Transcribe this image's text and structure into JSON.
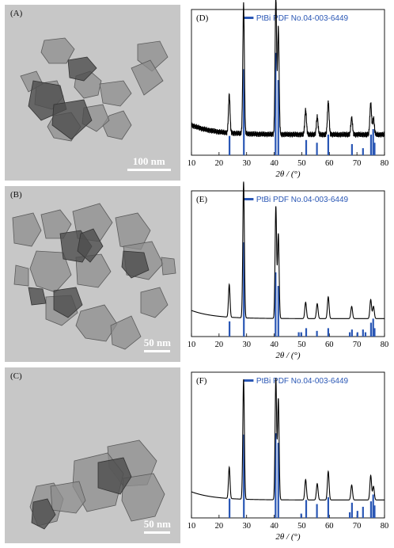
{
  "panels": [
    {
      "id": "A",
      "label": "(A)",
      "scale_text": "100 nm",
      "scale_bar_fraction": 0.25,
      "particles": [
        [
          [
            50,
            45
          ],
          [
            76,
            42
          ],
          [
            88,
            56
          ],
          [
            78,
            74
          ],
          [
            56,
            74
          ],
          [
            46,
            60
          ]
        ],
        [
          [
            90,
            90
          ],
          [
            108,
            84
          ],
          [
            122,
            96
          ],
          [
            118,
            114
          ],
          [
            100,
            118
          ],
          [
            88,
            104
          ]
        ],
        [
          [
            120,
            100
          ],
          [
            150,
            96
          ],
          [
            160,
            112
          ],
          [
            146,
            128
          ],
          [
            124,
            124
          ]
        ],
        [
          [
            40,
            100
          ],
          [
            66,
            96
          ],
          [
            74,
            116
          ],
          [
            60,
            132
          ],
          [
            38,
            126
          ]
        ],
        [
          [
            62,
            140
          ],
          [
            84,
            136
          ],
          [
            96,
            154
          ],
          [
            84,
            172
          ],
          [
            62,
            168
          ],
          [
            54,
            154
          ]
        ],
        [
          [
            132,
            140
          ],
          [
            150,
            134
          ],
          [
            160,
            152
          ],
          [
            148,
            170
          ],
          [
            130,
            166
          ],
          [
            124,
            152
          ]
        ],
        [
          [
            168,
            50
          ],
          [
            196,
            46
          ],
          [
            206,
            66
          ],
          [
            186,
            84
          ],
          [
            168,
            70
          ]
        ],
        [
          [
            160,
            80
          ],
          [
            184,
            70
          ],
          [
            200,
            96
          ],
          [
            176,
            114
          ]
        ],
        [
          [
            100,
            130
          ],
          [
            124,
            126
          ],
          [
            132,
            146
          ],
          [
            116,
            160
          ],
          [
            98,
            150
          ]
        ],
        [
          [
            20,
            90
          ],
          [
            40,
            84
          ],
          [
            48,
            100
          ],
          [
            30,
            110
          ]
        ]
      ],
      "dark_particles": [
        [
          [
            36,
            96
          ],
          [
            70,
            102
          ],
          [
            78,
            132
          ],
          [
            46,
            146
          ],
          [
            30,
            128
          ]
        ],
        [
          [
            62,
            126
          ],
          [
            100,
            120
          ],
          [
            110,
            146
          ],
          [
            84,
            170
          ],
          [
            60,
            152
          ]
        ],
        [
          [
            80,
            70
          ],
          [
            104,
            66
          ],
          [
            116,
            80
          ],
          [
            100,
            96
          ],
          [
            82,
            92
          ]
        ]
      ]
    },
    {
      "id": "B",
      "label": "(B)",
      "scale_text": "50 nm",
      "scale_bar_fraction": 0.15,
      "particles": [
        [
          [
            10,
            40
          ],
          [
            36,
            34
          ],
          [
            46,
            56
          ],
          [
            34,
            76
          ],
          [
            12,
            72
          ]
        ],
        [
          [
            46,
            36
          ],
          [
            70,
            30
          ],
          [
            84,
            48
          ],
          [
            74,
            66
          ],
          [
            52,
            66
          ]
        ],
        [
          [
            86,
            32
          ],
          [
            120,
            22
          ],
          [
            136,
            46
          ],
          [
            120,
            70
          ],
          [
            92,
            66
          ]
        ],
        [
          [
            140,
            40
          ],
          [
            168,
            34
          ],
          [
            184,
            56
          ],
          [
            172,
            80
          ],
          [
            146,
            76
          ]
        ],
        [
          [
            150,
            76
          ],
          [
            186,
            70
          ],
          [
            200,
            98
          ],
          [
            182,
            118
          ],
          [
            154,
            112
          ]
        ],
        [
          [
            40,
            82
          ],
          [
            74,
            84
          ],
          [
            84,
            112
          ],
          [
            64,
            134
          ],
          [
            40,
            126
          ],
          [
            32,
            104
          ]
        ],
        [
          [
            90,
            90
          ],
          [
            122,
            86
          ],
          [
            134,
            108
          ],
          [
            118,
            128
          ],
          [
            92,
            124
          ]
        ],
        [
          [
            14,
            100
          ],
          [
            30,
            104
          ],
          [
            30,
            126
          ],
          [
            12,
            124
          ]
        ],
        [
          [
            52,
            140
          ],
          [
            84,
            138
          ],
          [
            92,
            160
          ],
          [
            72,
            176
          ],
          [
            52,
            168
          ]
        ],
        [
          [
            96,
            158
          ],
          [
            126,
            150
          ],
          [
            142,
            174
          ],
          [
            128,
            196
          ],
          [
            102,
            192
          ],
          [
            90,
            176
          ]
        ],
        [
          [
            134,
            176
          ],
          [
            160,
            164
          ],
          [
            172,
            190
          ],
          [
            152,
            206
          ],
          [
            136,
            200
          ]
        ],
        [
          [
            172,
            134
          ],
          [
            196,
            128
          ],
          [
            206,
            150
          ],
          [
            190,
            166
          ],
          [
            172,
            160
          ]
        ],
        [
          [
            198,
            90
          ],
          [
            214,
            92
          ],
          [
            216,
            110
          ],
          [
            200,
            112
          ]
        ]
      ],
      "dark_particles": [
        [
          [
            70,
            60
          ],
          [
            96,
            56
          ],
          [
            110,
            76
          ],
          [
            98,
            96
          ],
          [
            74,
            92
          ]
        ],
        [
          [
            96,
            60
          ],
          [
            112,
            54
          ],
          [
            124,
            76
          ],
          [
            108,
            96
          ],
          [
            92,
            82
          ]
        ],
        [
          [
            62,
            132
          ],
          [
            90,
            128
          ],
          [
            98,
            150
          ],
          [
            80,
            166
          ],
          [
            62,
            156
          ]
        ],
        [
          [
            150,
            82
          ],
          [
            176,
            84
          ],
          [
            182,
            106
          ],
          [
            160,
            116
          ],
          [
            148,
            102
          ]
        ],
        [
          [
            30,
            128
          ],
          [
            48,
            130
          ],
          [
            52,
            148
          ],
          [
            34,
            150
          ]
        ]
      ]
    },
    {
      "id": "C",
      "label": "(C)",
      "scale_text": "50 nm",
      "scale_bar_fraction": 0.15,
      "particles": [
        [
          [
            130,
            100
          ],
          [
            170,
            92
          ],
          [
            192,
            118
          ],
          [
            180,
            148
          ],
          [
            150,
            150
          ],
          [
            132,
            126
          ]
        ],
        [
          [
            88,
            118
          ],
          [
            130,
            108
          ],
          [
            150,
            134
          ],
          [
            140,
            174
          ],
          [
            104,
            182
          ],
          [
            86,
            150
          ]
        ],
        [
          [
            150,
            140
          ],
          [
            188,
            134
          ],
          [
            202,
            160
          ],
          [
            190,
            188
          ],
          [
            160,
            194
          ],
          [
            148,
            168
          ]
        ],
        [
          [
            40,
            150
          ],
          [
            62,
            146
          ],
          [
            74,
            166
          ],
          [
            66,
            194
          ],
          [
            42,
            200
          ],
          [
            32,
            176
          ]
        ],
        [
          [
            58,
            150
          ],
          [
            94,
            144
          ],
          [
            102,
            168
          ],
          [
            90,
            184
          ],
          [
            60,
            180
          ]
        ]
      ],
      "dark_particles": [
        [
          [
            36,
            170
          ],
          [
            54,
            166
          ],
          [
            64,
            186
          ],
          [
            50,
            204
          ],
          [
            34,
            196
          ]
        ],
        [
          [
            118,
            120
          ],
          [
            150,
            114
          ],
          [
            160,
            138
          ],
          [
            146,
            160
          ],
          [
            118,
            152
          ]
        ]
      ]
    }
  ],
  "chart_data": [
    {
      "type": "line",
      "panel_label": "(D)",
      "legend": "PtBi PDF No.04-003-6449",
      "xlabel": "2θ / (°)",
      "xlim": [
        10,
        80
      ],
      "ylim": [
        0,
        100
      ],
      "x_ticks": [
        10,
        20,
        30,
        40,
        50,
        60,
        70,
        80
      ],
      "baseline": 14,
      "noise": 2.2,
      "peaks": [
        {
          "x": 23.7,
          "h": 28,
          "w": 0.28
        },
        {
          "x": 28.9,
          "h": 95,
          "w": 0.28
        },
        {
          "x": 40.6,
          "h": 100,
          "w": 0.28
        },
        {
          "x": 41.5,
          "h": 78,
          "w": 0.28
        },
        {
          "x": 51.4,
          "h": 18,
          "w": 0.3
        },
        {
          "x": 55.6,
          "h": 13,
          "w": 0.3
        },
        {
          "x": 59.6,
          "h": 24,
          "w": 0.3
        },
        {
          "x": 68.1,
          "h": 12,
          "w": 0.3
        },
        {
          "x": 75.0,
          "h": 23,
          "w": 0.3
        },
        {
          "x": 76.0,
          "h": 12,
          "w": 0.3
        }
      ],
      "reference": {
        "x": [
          23.8,
          29.0,
          40.5,
          41.5,
          51.6,
          55.5,
          59.6,
          68.2,
          72.2,
          75.1,
          75.9,
          76.4
        ],
        "h": [
          13,
          62,
          74,
          54,
          10,
          8,
          14,
          7,
          4,
          14,
          18,
          8
        ]
      }
    },
    {
      "type": "line",
      "panel_label": "(E)",
      "legend": "PtBi PDF No.04-003-6449",
      "xlabel": "2θ / (°)",
      "xlim": [
        10,
        80
      ],
      "ylim": [
        0,
        100
      ],
      "x_ticks": [
        10,
        20,
        30,
        40,
        50,
        60,
        70,
        80
      ],
      "baseline": 12,
      "noise": 0,
      "peaks": [
        {
          "x": 23.7,
          "h": 24,
          "w": 0.28
        },
        {
          "x": 28.9,
          "h": 100,
          "w": 0.28
        },
        {
          "x": 40.6,
          "h": 82,
          "w": 0.28
        },
        {
          "x": 41.5,
          "h": 62,
          "w": 0.28
        },
        {
          "x": 51.4,
          "h": 12,
          "w": 0.3
        },
        {
          "x": 55.6,
          "h": 11,
          "w": 0.3
        },
        {
          "x": 59.6,
          "h": 16,
          "w": 0.3
        },
        {
          "x": 68.1,
          "h": 9,
          "w": 0.3
        },
        {
          "x": 75.0,
          "h": 14,
          "w": 0.3
        },
        {
          "x": 76.0,
          "h": 9,
          "w": 0.3
        }
      ],
      "reference": {
        "x": [
          23.8,
          29.0,
          40.5,
          41.5,
          48.9,
          49.8,
          51.6,
          55.5,
          59.6,
          67.4,
          68.2,
          70.2,
          72.2,
          73.1,
          75.1,
          75.9,
          76.4
        ],
        "h": [
          10,
          68,
          46,
          36,
          2,
          2,
          5,
          3,
          5,
          2,
          4,
          2,
          4,
          2,
          9,
          12,
          5
        ]
      }
    },
    {
      "type": "line",
      "panel_label": "(F)",
      "legend": "PtBi PDF No.04-003-6449",
      "xlabel": "2θ / (°)",
      "xlim": [
        10,
        80
      ],
      "ylim": [
        0,
        100
      ],
      "x_ticks": [
        10,
        20,
        30,
        40,
        50,
        60,
        70,
        80
      ],
      "baseline": 12,
      "noise": 0,
      "peaks": [
        {
          "x": 23.7,
          "h": 23,
          "w": 0.28
        },
        {
          "x": 28.9,
          "h": 88,
          "w": 0.28
        },
        {
          "x": 40.6,
          "h": 89,
          "w": 0.28
        },
        {
          "x": 41.5,
          "h": 74,
          "w": 0.28
        },
        {
          "x": 51.4,
          "h": 15,
          "w": 0.3
        },
        {
          "x": 55.6,
          "h": 12,
          "w": 0.3
        },
        {
          "x": 59.6,
          "h": 21,
          "w": 0.3
        },
        {
          "x": 68.1,
          "h": 11,
          "w": 0.3
        },
        {
          "x": 75.0,
          "h": 18,
          "w": 0.3
        },
        {
          "x": 76.0,
          "h": 10,
          "w": 0.3
        }
      ],
      "reference": {
        "x": [
          23.8,
          29.0,
          40.5,
          41.5,
          49.8,
          51.6,
          55.5,
          59.6,
          67.4,
          68.2,
          70.2,
          72.2,
          75.1,
          75.9,
          76.4
        ],
        "h": [
          13,
          60,
          61,
          54,
          2,
          12,
          9,
          14,
          3,
          10,
          4,
          7,
          11,
          16,
          8
        ]
      }
    }
  ],
  "colors": {
    "trace": "#000000",
    "reference": "#2a57b5",
    "tem_background": "#c7c7c7",
    "particle_fill": "#8e8e8e",
    "particle_dark_fill": "#4e4e4e"
  }
}
